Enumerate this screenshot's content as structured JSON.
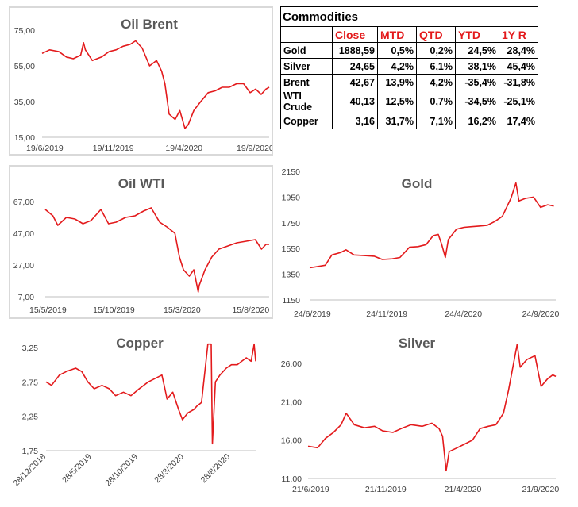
{
  "colors": {
    "series": "#e31a1c",
    "header_text": "#e31a1c"
  },
  "table": {
    "title": "Commodities",
    "columns": [
      "",
      "Close",
      "MTD",
      "QTD",
      "YTD",
      "1Y R"
    ],
    "rows": [
      [
        "Gold",
        "1888,59",
        "0,5%",
        "0,2%",
        "24,5%",
        "28,4%"
      ],
      [
        "Silver",
        "24,65",
        "4,2%",
        "6,1%",
        "38,1%",
        "45,4%"
      ],
      [
        "Brent",
        "42,67",
        "13,9%",
        "4,2%",
        "-35,4%",
        "-31,8%"
      ],
      [
        "WTI Crude",
        "40,13",
        "12,5%",
        "0,7%",
        "-34,5%",
        "-25,1%"
      ],
      [
        "Copper",
        "3,16",
        "31,7%",
        "7,1%",
        "16,2%",
        "17,4%"
      ]
    ]
  },
  "chart_data": [
    {
      "id": "brent",
      "type": "line",
      "title": "Oil Brent",
      "xlim": [
        "2019-06-19",
        "2020-10-19"
      ],
      "ylim": [
        15,
        75
      ],
      "yticks": [
        15,
        35,
        55,
        75
      ],
      "yticklabels": [
        "15,00",
        "35,00",
        "55,00",
        "75,00"
      ],
      "xticks": [
        "2019-06-19",
        "2019-11-19",
        "2020-04-19",
        "2020-09-19"
      ],
      "xticklabels": [
        "19/6/2019",
        "19/11/2019",
        "19/4/2020",
        "19/9/2020"
      ],
      "series": [
        {
          "x": [
            "2019-06-19",
            "2019-07-05",
            "2019-07-25",
            "2019-08-10",
            "2019-08-25",
            "2019-09-10",
            "2019-09-16",
            "2019-09-20",
            "2019-10-05",
            "2019-10-25",
            "2019-11-10",
            "2019-11-25",
            "2019-12-10",
            "2019-12-25",
            "2020-01-06",
            "2020-01-20",
            "2020-02-05",
            "2020-02-20",
            "2020-03-02",
            "2020-03-09",
            "2020-03-18",
            "2020-03-31",
            "2020-04-10",
            "2020-04-21",
            "2020-04-28",
            "2020-05-10",
            "2020-05-25",
            "2020-06-10",
            "2020-06-25",
            "2020-07-10",
            "2020-07-25",
            "2020-08-10",
            "2020-08-25",
            "2020-09-08",
            "2020-09-20",
            "2020-10-02",
            "2020-10-12",
            "2020-10-19"
          ],
          "y": [
            62,
            64,
            63,
            60,
            59,
            61,
            68,
            64,
            58,
            60,
            63,
            64,
            66,
            67,
            69,
            65,
            55,
            58,
            52,
            45,
            28,
            25,
            30,
            20,
            22,
            30,
            35,
            40,
            41,
            43,
            43,
            45,
            45,
            40,
            42,
            39,
            42,
            43
          ]
        }
      ]
    },
    {
      "id": "wti",
      "type": "line",
      "title": "Oil WTI",
      "xlim": [
        "2019-05-15",
        "2020-09-25"
      ],
      "ylim": [
        7,
        67
      ],
      "yticks": [
        7,
        27,
        47,
        67
      ],
      "yticklabels": [
        "7,00",
        "27,00",
        "47,00",
        "67,00"
      ],
      "xticks": [
        "2019-05-15",
        "2019-10-15",
        "2020-03-15",
        "2020-08-15"
      ],
      "xticklabels": [
        "15/5/2019",
        "15/10/2019",
        "15/3/2020",
        "15/8/2020"
      ],
      "series": [
        {
          "x": [
            "2019-05-15",
            "2019-06-01",
            "2019-06-12",
            "2019-07-01",
            "2019-07-20",
            "2019-08-07",
            "2019-08-25",
            "2019-09-16",
            "2019-10-03",
            "2019-10-20",
            "2019-11-10",
            "2019-12-01",
            "2019-12-20",
            "2020-01-06",
            "2020-01-25",
            "2020-02-10",
            "2020-02-28",
            "2020-03-09",
            "2020-03-18",
            "2020-03-31",
            "2020-04-10",
            "2020-04-20",
            "2020-04-22",
            "2020-05-05",
            "2020-05-20",
            "2020-06-05",
            "2020-06-25",
            "2020-07-15",
            "2020-08-05",
            "2020-08-25",
            "2020-09-08",
            "2020-09-18",
            "2020-09-25"
          ],
          "y": [
            62,
            58,
            52,
            57,
            56,
            53,
            55,
            62,
            53,
            54,
            57,
            58,
            61,
            63,
            54,
            51,
            47,
            32,
            24,
            20,
            24,
            10,
            14,
            24,
            32,
            37,
            39,
            41,
            42,
            43,
            37,
            40,
            40
          ]
        }
      ]
    },
    {
      "id": "gold",
      "type": "line",
      "title": "Gold",
      "xlim": [
        "2019-06-24",
        "2020-10-24"
      ],
      "ylim": [
        1150,
        2150
      ],
      "yticks": [
        1150,
        1350,
        1550,
        1750,
        1950,
        2150
      ],
      "yticklabels": [
        "1150",
        "1350",
        "1550",
        "1750",
        "1950",
        "2150"
      ],
      "xticks": [
        "2019-06-24",
        "2019-11-24",
        "2020-04-24",
        "2020-09-24"
      ],
      "xticklabels": [
        "24/6/2019",
        "24/11/2019",
        "24/4/2020",
        "24/9/2020"
      ],
      "series": [
        {
          "x": [
            "2019-06-24",
            "2019-07-10",
            "2019-07-25",
            "2019-08-07",
            "2019-08-25",
            "2019-09-04",
            "2019-09-20",
            "2019-10-10",
            "2019-10-30",
            "2019-11-15",
            "2019-12-05",
            "2019-12-20",
            "2020-01-08",
            "2020-01-25",
            "2020-02-10",
            "2020-02-24",
            "2020-03-05",
            "2020-03-12",
            "2020-03-19",
            "2020-03-25",
            "2020-04-10",
            "2020-04-25",
            "2020-05-10",
            "2020-05-25",
            "2020-06-10",
            "2020-06-25",
            "2020-07-10",
            "2020-07-27",
            "2020-08-06",
            "2020-08-12",
            "2020-08-25",
            "2020-09-10",
            "2020-09-24",
            "2020-10-08",
            "2020-10-20"
          ],
          "y": [
            1400,
            1410,
            1420,
            1500,
            1520,
            1540,
            1500,
            1495,
            1490,
            1465,
            1470,
            1480,
            1560,
            1565,
            1580,
            1650,
            1660,
            1580,
            1480,
            1620,
            1700,
            1715,
            1720,
            1725,
            1730,
            1760,
            1800,
            1940,
            2060,
            1920,
            1940,
            1950,
            1870,
            1890,
            1880
          ]
        }
      ]
    },
    {
      "id": "copper",
      "type": "line",
      "title": "Copper",
      "xlim": [
        "2018-12-28",
        "2020-11-20"
      ],
      "ylim": [
        1.75,
        3.25
      ],
      "yticks": [
        1.75,
        2.25,
        2.75,
        3.25
      ],
      "yticklabels": [
        "1,75",
        "2,25",
        "2,75",
        "3,25"
      ],
      "xticks": [
        "2018-12-28",
        "2019-05-28",
        "2019-10-28",
        "2020-03-28",
        "2020-08-28"
      ],
      "xticklabels": [
        "28/12/2018",
        "28/5/2019",
        "28/10/2019",
        "28/3/2020",
        "28/8/2020"
      ],
      "series": [
        {
          "x": [
            "2018-12-28",
            "2019-01-15",
            "2019-02-10",
            "2019-03-05",
            "2019-04-05",
            "2019-04-25",
            "2019-05-15",
            "2019-06-05",
            "2019-07-01",
            "2019-07-25",
            "2019-08-15",
            "2019-09-10",
            "2019-10-05",
            "2019-11-01",
            "2019-12-01",
            "2020-01-15",
            "2020-01-25",
            "2020-02-01",
            "2020-02-20",
            "2020-03-10",
            "2020-03-23",
            "2020-04-10",
            "2020-04-30",
            "2020-05-10",
            "2020-05-25",
            "2020-06-15",
            "2020-06-26",
            "2020-06-30",
            "2020-07-10",
            "2020-07-25",
            "2020-08-15",
            "2020-09-01",
            "2020-09-20",
            "2020-10-05",
            "2020-10-20",
            "2020-11-05",
            "2020-11-15",
            "2020-11-20"
          ],
          "y": [
            2.75,
            2.7,
            2.85,
            2.9,
            2.95,
            2.9,
            2.75,
            2.65,
            2.7,
            2.65,
            2.55,
            2.6,
            2.55,
            2.65,
            2.75,
            2.85,
            2.65,
            2.5,
            2.6,
            2.35,
            2.2,
            2.3,
            2.35,
            2.4,
            2.45,
            3.3,
            3.3,
            1.85,
            2.75,
            2.85,
            2.95,
            3.0,
            3.0,
            3.05,
            3.1,
            3.05,
            3.3,
            3.05
          ]
        }
      ]
    },
    {
      "id": "silver",
      "type": "line",
      "title": "Silver",
      "xlim": [
        "2019-06-21",
        "2020-10-21"
      ],
      "ylim": [
        11,
        26
      ],
      "yticks": [
        11,
        16,
        21,
        26
      ],
      "yticklabels": [
        "11,00",
        "16,00",
        "21,00",
        "26,00"
      ],
      "xticks": [
        "2019-06-21",
        "2019-11-21",
        "2020-04-21",
        "2020-09-21"
      ],
      "xticklabels": [
        "21/6/2019",
        "21/11/2019",
        "21/4/2020",
        "21/9/2020"
      ],
      "series": [
        {
          "x": [
            "2019-06-21",
            "2019-07-10",
            "2019-07-25",
            "2019-08-10",
            "2019-08-25",
            "2019-09-04",
            "2019-09-20",
            "2019-10-10",
            "2019-10-30",
            "2019-11-15",
            "2019-12-05",
            "2019-12-25",
            "2020-01-10",
            "2020-02-01",
            "2020-02-20",
            "2020-03-05",
            "2020-03-12",
            "2020-03-19",
            "2020-03-25",
            "2020-04-10",
            "2020-04-25",
            "2020-05-10",
            "2020-05-25",
            "2020-06-10",
            "2020-06-25",
            "2020-07-10",
            "2020-07-20",
            "2020-08-06",
            "2020-08-12",
            "2020-08-25",
            "2020-09-10",
            "2020-09-22",
            "2020-10-05",
            "2020-10-15",
            "2020-10-21"
          ],
          "y": [
            15.2,
            15.0,
            16.2,
            17.0,
            18.0,
            19.5,
            18.0,
            17.6,
            17.8,
            17.2,
            17.0,
            17.6,
            18.0,
            17.8,
            18.2,
            17.5,
            16.5,
            12.0,
            14.5,
            15.0,
            15.5,
            16.0,
            17.5,
            17.8,
            18.0,
            19.5,
            22.5,
            28.5,
            25.5,
            26.5,
            27.0,
            23.0,
            24.0,
            24.5,
            24.3
          ]
        }
      ]
    }
  ]
}
